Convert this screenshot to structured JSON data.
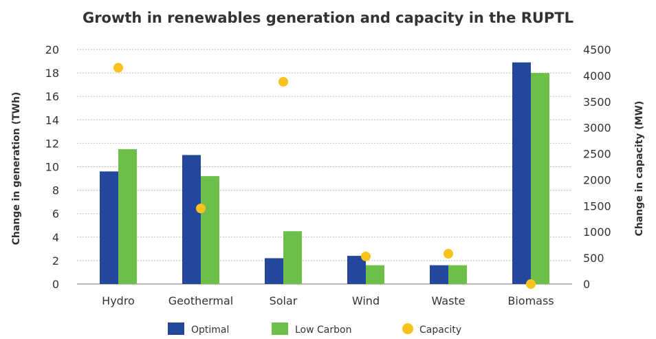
{
  "chart_data": {
    "type": "bar",
    "title": "Growth in renewables generation and capacity in the RUPTL",
    "categories": [
      "Hydro",
      "Geothermal",
      "Solar",
      "Wind",
      "Waste",
      "Biomass"
    ],
    "ylabel": "Change in generation (TWh)",
    "y2label": "Change in capacity (MW)",
    "ylim": [
      0,
      20
    ],
    "y2lim": [
      0,
      4500
    ],
    "yticks": [
      "0",
      "2",
      "4",
      "6",
      "8",
      "10",
      "12",
      "14",
      "16",
      "18",
      "20"
    ],
    "y2ticks": [
      "0",
      "500",
      "1000",
      "1500",
      "2000",
      "2500",
      "3000",
      "3500",
      "4000",
      "4500"
    ],
    "grid": true,
    "legend_position": "bottom",
    "series": [
      {
        "name": "Optimal",
        "kind": "bar",
        "axis": "left",
        "color": "#23479b",
        "values": [
          9.6,
          11.0,
          2.2,
          2.4,
          1.6,
          18.9
        ]
      },
      {
        "name": "Low Carbon",
        "kind": "bar",
        "axis": "left",
        "color": "#6cc04a",
        "values": [
          11.5,
          9.2,
          4.5,
          1.6,
          1.6,
          18.0
        ]
      },
      {
        "name": "Capacity",
        "kind": "scatter",
        "axis": "right",
        "color": "#f7c21b",
        "values": [
          4150,
          1450,
          3880,
          530,
          580,
          0
        ]
      }
    ]
  }
}
